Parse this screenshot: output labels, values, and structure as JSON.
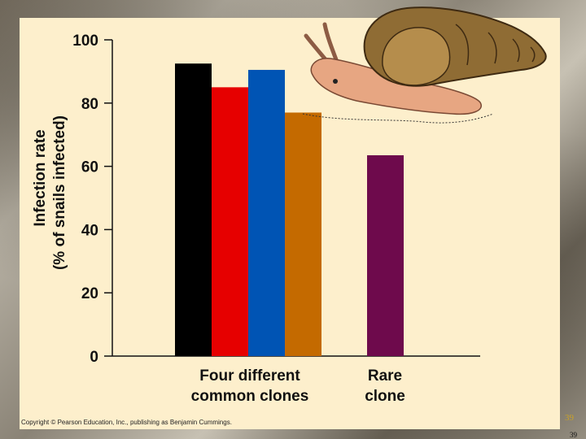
{
  "chart_data": {
    "type": "bar",
    "ylabel_line1": "Infection rate",
    "ylabel_line2": "(% of snails infected)",
    "ylim": [
      0,
      100
    ],
    "yticks": [
      0,
      20,
      40,
      60,
      80,
      100
    ],
    "grid": false,
    "series": [
      {
        "values": [
          92.5
        ],
        "color": "#000000"
      },
      {
        "values": [
          85
        ],
        "color": "#e60000"
      },
      {
        "values": [
          90.5
        ],
        "color": "#0054b4"
      },
      {
        "values": [
          77
        ],
        "color": "#c46a00"
      },
      {
        "values": [
          63.5
        ],
        "color": "#6e0a4c"
      }
    ],
    "groups": [
      {
        "label_line1": "Four different",
        "label_line2": "common clones",
        "series_indices": [
          0,
          1,
          2,
          3
        ]
      },
      {
        "label_line1": "Rare",
        "label_line2": "clone",
        "series_indices": [
          4
        ]
      }
    ]
  },
  "illustration": "snail-icon",
  "footer": {
    "copyright": "Copyright © Pearson Education, Inc., publishing as Benjamin Cummings.",
    "page_number": "39",
    "page_number_small": "39"
  }
}
